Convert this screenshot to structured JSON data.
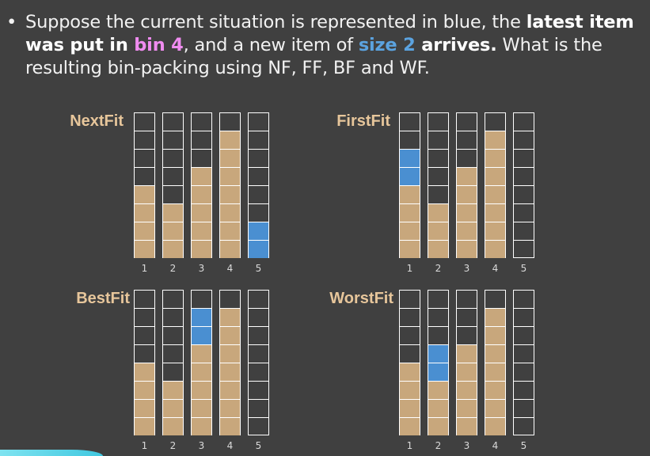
{
  "question": {
    "bullet": "•",
    "part1": "Suppose the current situation is represented in blue, the ",
    "bold1": "latest item was put in ",
    "pink": "bin 4",
    "part2": ", and a new item of ",
    "blue": "size 2",
    "bold2": " arrives.",
    "part3": " What is the resulting bin-packing using NF, FF, BF and WF."
  },
  "colors": {
    "background": "#404040",
    "existing_item": "#c8a77c",
    "new_item": "#4a8fd1",
    "title": "#e7c69b",
    "highlight_pink": "#f08cf0",
    "highlight_blue": "#5ba3e0"
  },
  "bin_capacity": 8,
  "bin_labels": [
    "1",
    "2",
    "3",
    "4",
    "5"
  ],
  "panels": [
    {
      "title": "NextFit",
      "existing": [
        4,
        3,
        5,
        7,
        0
      ],
      "new": [
        0,
        0,
        0,
        0,
        2
      ]
    },
    {
      "title": "FirstFit",
      "existing": [
        4,
        3,
        5,
        7,
        0
      ],
      "new": [
        2,
        0,
        0,
        0,
        0
      ]
    },
    {
      "title": "BestFit",
      "existing": [
        4,
        3,
        5,
        7,
        0
      ],
      "new": [
        0,
        0,
        2,
        0,
        0
      ]
    },
    {
      "title": "WorstFit",
      "existing": [
        4,
        3,
        5,
        7,
        0
      ],
      "new": [
        0,
        2,
        0,
        0,
        0
      ]
    }
  ]
}
